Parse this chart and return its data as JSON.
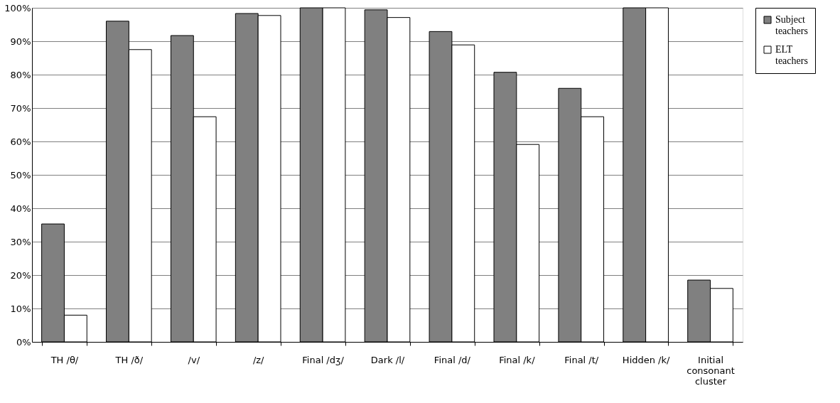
{
  "chart_data": {
    "type": "bar",
    "categories": [
      "TH /θ/",
      "TH /ð/",
      "/v/",
      "/z/",
      "Final /dʒ/",
      "Dark /l/",
      "Final /d/",
      "Final /k/",
      "Final /t/",
      "Hidden /k/",
      "Initial consonant cluster"
    ],
    "series": [
      {
        "name": "Subject teachers",
        "color": "#808080",
        "values": [
          35.3,
          96,
          91.7,
          98.3,
          100,
          99.4,
          92.9,
          80.7,
          75.9,
          100,
          18.5
        ]
      },
      {
        "name": "ELT teachers",
        "color": "#ffffff",
        "values": [
          8,
          87.5,
          67.4,
          97.7,
          100,
          97.1,
          88.9,
          59.1,
          67.4,
          100,
          16
        ]
      }
    ],
    "ylim": [
      0,
      100
    ],
    "yticks": [
      {
        "value": 0,
        "label": "0%"
      },
      {
        "value": 10,
        "label": "10%"
      },
      {
        "value": 20,
        "label": "20%"
      },
      {
        "value": 30,
        "label": "30%"
      },
      {
        "value": 40,
        "label": "40%"
      },
      {
        "value": 50,
        "label": "50%"
      },
      {
        "value": 60,
        "label": "60%"
      },
      {
        "value": 70,
        "label": "70%"
      },
      {
        "value": 80,
        "label": "80%"
      },
      {
        "value": 90,
        "label": "90%"
      },
      {
        "value": 100,
        "label": "100%"
      }
    ],
    "grid": "y",
    "legend": "right"
  }
}
